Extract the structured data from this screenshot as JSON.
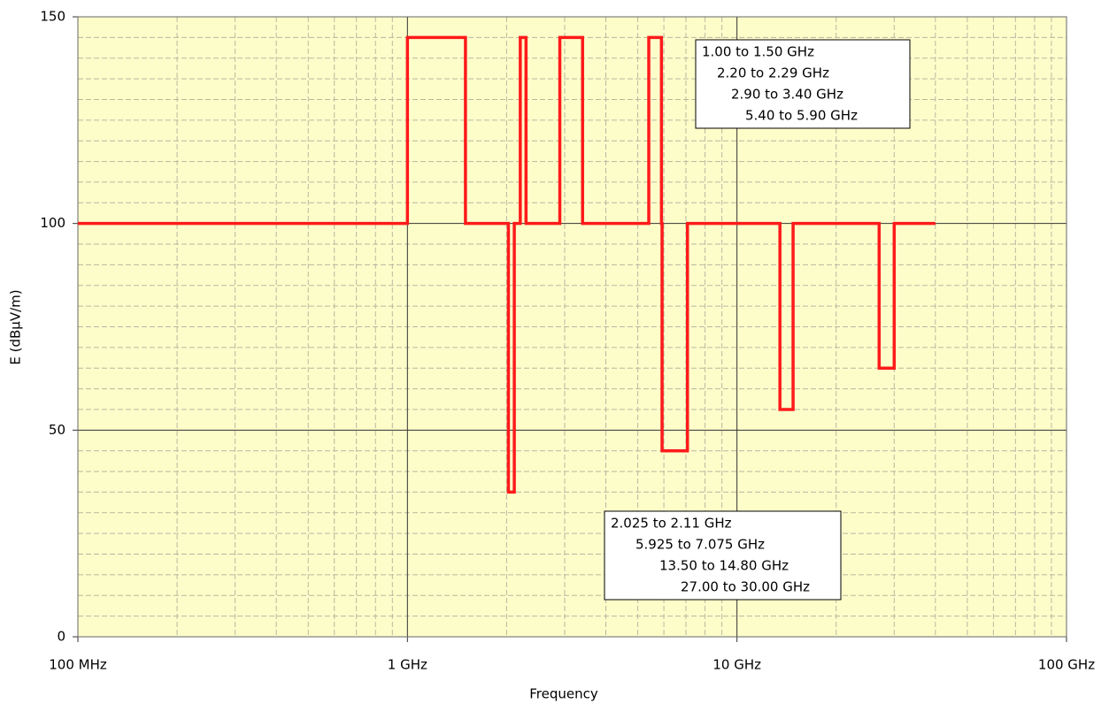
{
  "chart_data": {
    "type": "line",
    "xlabel": "Frequency",
    "ylabel": "E (dBµV/m)",
    "xscale": "log",
    "xlim": [
      0.1,
      100
    ],
    "xticks": [
      {
        "value": 0.1,
        "label": "100 MHz"
      },
      {
        "value": 1,
        "label": "1 GHz"
      },
      {
        "value": 10,
        "label": "10 GHz"
      },
      {
        "value": 100,
        "label": "100 GHz"
      }
    ],
    "ylim": [
      0,
      150
    ],
    "yticks": [
      0,
      50,
      100,
      150
    ],
    "grid": true,
    "minor_grid": true,
    "background": "#fdfdca",
    "series": [
      {
        "color": "#ff1a1a",
        "x": [
          0.1,
          1,
          1,
          1.5,
          1.5,
          2.025,
          2.025,
          2.11,
          2.11,
          2.2,
          2.2,
          2.29,
          2.29,
          2.9,
          2.9,
          3.4,
          3.4,
          5.4,
          5.4,
          5.9,
          5.9,
          5.925,
          5.925,
          7.075,
          7.075,
          13.5,
          13.5,
          14.8,
          14.8,
          27,
          27,
          30,
          30,
          40
        ],
        "values": [
          100,
          100,
          145,
          145,
          100,
          100,
          35,
          35,
          100,
          100,
          145,
          145,
          100,
          100,
          145,
          145,
          100,
          100,
          145,
          145,
          100,
          100,
          45,
          45,
          100,
          100,
          55,
          55,
          100,
          100,
          65,
          65,
          100,
          100
        ]
      }
    ],
    "annotations": [
      {
        "lines": [
          "1.00 to 1.50 GHz",
          "2.20 to 2.29 GHz",
          "2.90 to 3.40 GHz",
          "5.40 to 5.90 GHz"
        ]
      },
      {
        "lines": [
          "2.025 to 2.11 GHz",
          "5.925 to 7.075 GHz",
          "13.50 to 14.80 GHz",
          "27.00 to 30.00 GHz"
        ]
      }
    ]
  }
}
